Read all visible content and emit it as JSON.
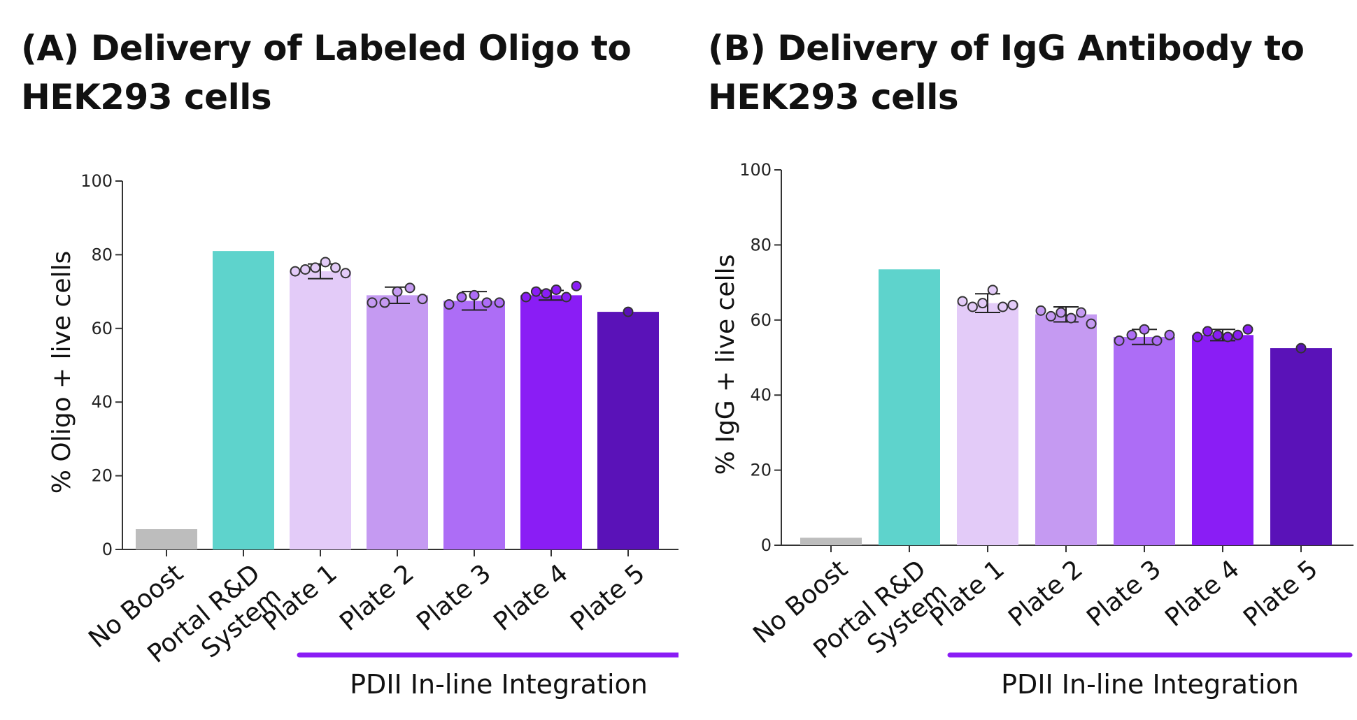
{
  "figure": {
    "label": "Figure"
  },
  "panels": [
    {
      "title_lines": [
        "(A) Delivery of Labeled Oligo to",
        "HEK293 cells"
      ]
    },
    {
      "title_lines": [
        "(B) Delivery of IgG Antibody to",
        "HEK293 cells"
      ]
    }
  ],
  "colors": {
    "No Boost": "#bdbdbd",
    "Portal R&D System": "#5ed3cc",
    "Plate 1": "#e3cbf8",
    "Plate 2": "#c59af2",
    "Plate 3": "#ad6df6",
    "Plate 4": "#8a1df5",
    "Plate 5": "#5a12b8",
    "integration_bar": "#8a1df5",
    "axis": "#333333"
  },
  "chart_data": [
    {
      "type": "bar",
      "title": "(A) Delivery of Labeled Oligo to HEK293 cells",
      "ylabel": "% Oligo + live cells",
      "xlabel": "",
      "ylim": [
        0,
        100
      ],
      "yticks": [
        0,
        20,
        40,
        60,
        80,
        100
      ],
      "categories": [
        [
          "No Boost"
        ],
        [
          "Portal R&D",
          "System"
        ],
        [
          "Plate 1"
        ],
        [
          "Plate 2"
        ],
        [
          "Plate 3"
        ],
        [
          "Plate 4"
        ],
        [
          "Plate 5"
        ]
      ],
      "series_keys": [
        "No Boost",
        "Portal R&D System",
        "Plate 1",
        "Plate 2",
        "Plate 3",
        "Plate 4",
        "Plate 5"
      ],
      "values": [
        5.5,
        81,
        75.5,
        69,
        67.5,
        69,
        64.5
      ],
      "error_bars": [
        null,
        null,
        2,
        2.2,
        2.5,
        1.3,
        null
      ],
      "replicates": [
        [],
        [],
        [
          75.5,
          76,
          76.5,
          78,
          76.5,
          75
        ],
        [
          67,
          67,
          70,
          71,
          68
        ],
        [
          66.5,
          68.5,
          69,
          67,
          67
        ],
        [
          68.5,
          70,
          69.5,
          70.5,
          68.5,
          71.5
        ],
        [
          64.5
        ]
      ],
      "group_label": "PDII In-line Integration",
      "group_range": [
        2,
        6
      ]
    },
    {
      "type": "bar",
      "title": "(B) Delivery of IgG Antibody to HEK293 cells",
      "ylabel": "% IgG + live cells",
      "xlabel": "",
      "ylim": [
        0,
        100
      ],
      "yticks": [
        0,
        20,
        40,
        60,
        80,
        100
      ],
      "categories": [
        [
          "No Boost"
        ],
        [
          "Portal R&D",
          "System"
        ],
        [
          "Plate 1"
        ],
        [
          "Plate 2"
        ],
        [
          "Plate 3"
        ],
        [
          "Plate 4"
        ],
        [
          "Plate 5"
        ]
      ],
      "series_keys": [
        "No Boost",
        "Portal R&D System",
        "Plate 1",
        "Plate 2",
        "Plate 3",
        "Plate 4",
        "Plate 5"
      ],
      "values": [
        2,
        73.5,
        64.5,
        61.5,
        55.5,
        56,
        52.5
      ],
      "error_bars": [
        null,
        null,
        2.5,
        2,
        2,
        1.5,
        null
      ],
      "replicates": [
        [],
        [],
        [
          65,
          63.5,
          64.5,
          68,
          63.5,
          64
        ],
        [
          62.5,
          61,
          62,
          60.5,
          62,
          59
        ],
        [
          54.5,
          56,
          57.5,
          54.5,
          56
        ],
        [
          55.5,
          57,
          56,
          55.5,
          56,
          57.5
        ],
        [
          52.5
        ]
      ],
      "group_label": "PDII In-line Integration",
      "group_range": [
        2,
        6
      ]
    }
  ]
}
